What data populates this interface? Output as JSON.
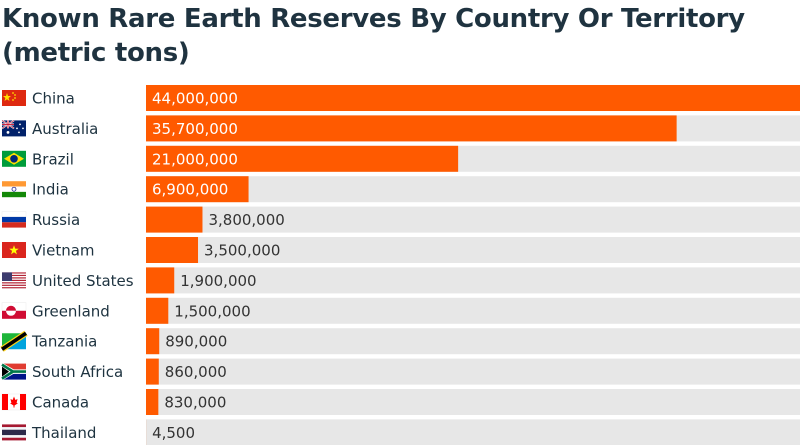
{
  "chart_data": {
    "type": "bar",
    "orientation": "horizontal",
    "title": "Known Rare Earth Reserves By Country Or Territory (metric tons)",
    "xlabel": "",
    "ylabel": "",
    "xlim": [
      0,
      44000000
    ],
    "grid": false,
    "legend": "none",
    "categories": [
      "China",
      "Australia",
      "Brazil",
      "India",
      "Russia",
      "Vietnam",
      "United States",
      "Greenland",
      "Tanzania",
      "South Africa",
      "Canada",
      "Thailand"
    ],
    "values": [
      44000000,
      35700000,
      21000000,
      6900000,
      3800000,
      3500000,
      1900000,
      1500000,
      890000,
      860000,
      830000,
      4500
    ],
    "value_labels": [
      "44,000,000",
      "35,700,000",
      "21,000,000",
      "6,900,000",
      "3,800,000",
      "3,500,000",
      "1,900,000",
      "1,500,000",
      "890,000",
      "860,000",
      "830,000",
      "4,500"
    ],
    "flag_icons": [
      "china-flag-icon",
      "australia-flag-icon",
      "brazil-flag-icon",
      "india-flag-icon",
      "russia-flag-icon",
      "vietnam-flag-icon",
      "united-states-flag-icon",
      "greenland-flag-icon",
      "tanzania-flag-icon",
      "south-africa-flag-icon",
      "canada-flag-icon",
      "thailand-flag-icon"
    ]
  },
  "colors": {
    "bar": "#ff5a00",
    "track": "#e7e7e7",
    "title": "#1f3340",
    "label": "#1e3340",
    "value_inside": "#ffffff",
    "value_outside": "#333333"
  }
}
